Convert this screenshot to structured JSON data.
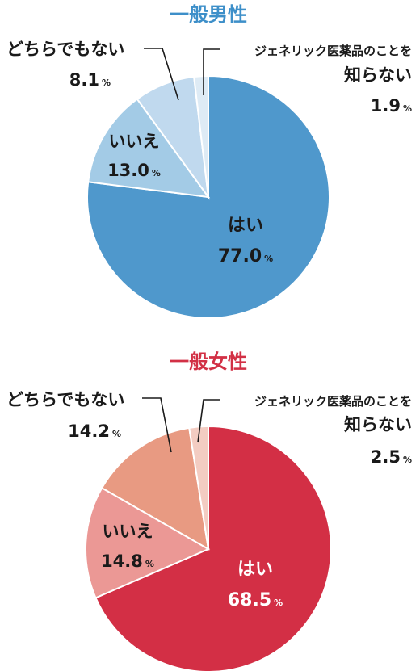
{
  "chart_data": [
    {
      "type": "pie",
      "title": "一般男性",
      "title_color": "#3d8fc9",
      "percent_sign": "%",
      "slices": [
        {
          "label": "はい",
          "value": 77.0,
          "value_text": "77.0",
          "color": "#4f98cc"
        },
        {
          "label": "いいえ",
          "value": 13.0,
          "value_text": "13.0",
          "color": "#a3cbe6"
        },
        {
          "label": "どちらでもない",
          "value": 8.1,
          "value_text": "8.1",
          "color": "#c0d9ee"
        },
        {
          "label_line1": "ジェネリック医薬品のことを",
          "label_line2": "知らない",
          "value": 1.9,
          "value_text": "1.9",
          "color": "#deebf5"
        }
      ]
    },
    {
      "type": "pie",
      "title": "一般女性",
      "title_color": "#d23045",
      "percent_sign": "%",
      "slices": [
        {
          "label": "はい",
          "value": 68.5,
          "value_text": "68.5",
          "color": "#d32f45"
        },
        {
          "label": "いいえ",
          "value": 14.8,
          "value_text": "14.8",
          "color": "#eb9895"
        },
        {
          "label": "どちらでもない",
          "value": 14.2,
          "value_text": "14.2",
          "color": "#e89a82"
        },
        {
          "label_line1": "ジェネリック医薬品のことを",
          "label_line2": "知らない",
          "value": 2.5,
          "value_text": "2.5",
          "color": "#f3ccc2"
        }
      ]
    }
  ]
}
